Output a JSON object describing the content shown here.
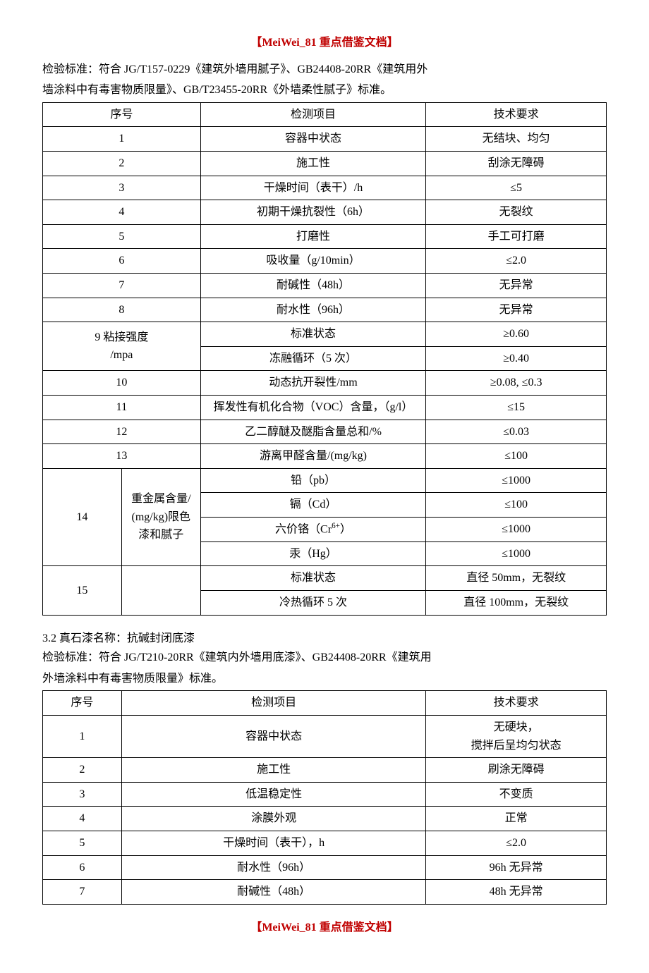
{
  "header_tag": "【MeiWei_81 重点借鉴文档】",
  "footer_tag": "【MeiWei_81 重点借鉴文档】",
  "intro1_line1": "检验标准：符合 JG/T157-0229《建筑外墙用腻子》、GB24408-20RR《建筑用外",
  "intro1_line2": "墙涂料中有毒害物质限量》、GB/T23455-20RR《外墙柔性腻子》标准。",
  "table1": {
    "header": {
      "c1": "序号",
      "c2": "检测项目",
      "c3": "技术要求"
    },
    "rows": {
      "r1": {
        "no": "1",
        "item": "容器中状态",
        "req": "无结块、均匀"
      },
      "r2": {
        "no": "2",
        "item": "施工性",
        "req": "刮涂无障碍"
      },
      "r3": {
        "no": "3",
        "item": "干燥时间（表干）/h",
        "req": "≤5"
      },
      "r4": {
        "no": "4",
        "item": "初期干燥抗裂性（6h）",
        "req": "无裂纹"
      },
      "r5": {
        "no": "5",
        "item": "打磨性",
        "req": "手工可打磨"
      },
      "r6": {
        "no": "6",
        "item": "吸收量（g/10min）",
        "req": "≤2.0"
      },
      "r7": {
        "no": "7",
        "item": "耐碱性（48h）",
        "req": "无异常"
      },
      "r8": {
        "no": "8",
        "item": "耐水性（96h）",
        "req": "无异常"
      },
      "r9": {
        "no_label_a": "9 粘接强度",
        "no_label_b": "/mpa",
        "sub1": "标准状态",
        "req1": "≥0.60",
        "sub2": "冻融循环（5 次）",
        "req2": "≥0.40"
      },
      "r10": {
        "no": "10",
        "item": "动态抗开裂性/mm",
        "req": "≥0.08, ≤0.3"
      },
      "r11": {
        "no": "11",
        "item": "挥发性有机化合物（VOC）含量，（g/l）",
        "req": "≤15"
      },
      "r12": {
        "no": "12",
        "item": "乙二醇醚及醚脂含量总和/%",
        "req": "≤0.03"
      },
      "r13": {
        "no": "13",
        "item": "游离甲醛含量/(mg/kg)",
        "req": "≤100"
      },
      "r14": {
        "no": "14",
        "group": "重金属含量/(mg/kg)限色漆和腻子",
        "s1": "铅（pb）",
        "v1": "≤1000",
        "s2": "镉（Cd）",
        "v2": "≤100",
        "s3_pre": "六价铬（Cr",
        "s3_sup": "6+",
        "s3_post": "）",
        "v3": "≤1000",
        "s4": "汞（Hg）",
        "v4": "≤1000"
      },
      "r15": {
        "no": "15",
        "s1": "标准状态",
        "v1": "直径 50mm，无裂纹",
        "s2": "冷热循环 5 次",
        "v2": "直径 100mm，无裂纹"
      }
    }
  },
  "section2_title": "3.2 真石漆名称：抗碱封闭底漆",
  "intro2_line1": "检验标准：符合 JG/T210-20RR《建筑内外墙用底漆》、GB24408-20RR《建筑用",
  "intro2_line2": "外墙涂料中有毒害物质限量》标准。",
  "table2": {
    "header": {
      "c1": "序号",
      "c2": "检测项目",
      "c3": "技术要求"
    },
    "rows": {
      "r1": {
        "no": "1",
        "item": "容器中状态",
        "req_a": "无硬块，",
        "req_b": "搅拌后呈均匀状态"
      },
      "r2": {
        "no": "2",
        "item": "施工性",
        "req": "刷涂无障碍"
      },
      "r3": {
        "no": "3",
        "item": "低温稳定性",
        "req": "不变质"
      },
      "r4": {
        "no": "4",
        "item": "涂膜外观",
        "req": "正常"
      },
      "r5": {
        "no": "5",
        "item": "干燥时间（表干），h",
        "req": "≤2.0"
      },
      "r6": {
        "no": "6",
        "item": "耐水性（96h）",
        "req": "96h 无异常"
      },
      "r7": {
        "no": "7",
        "item": "耐碱性（48h）",
        "req": "48h 无异常"
      }
    }
  }
}
